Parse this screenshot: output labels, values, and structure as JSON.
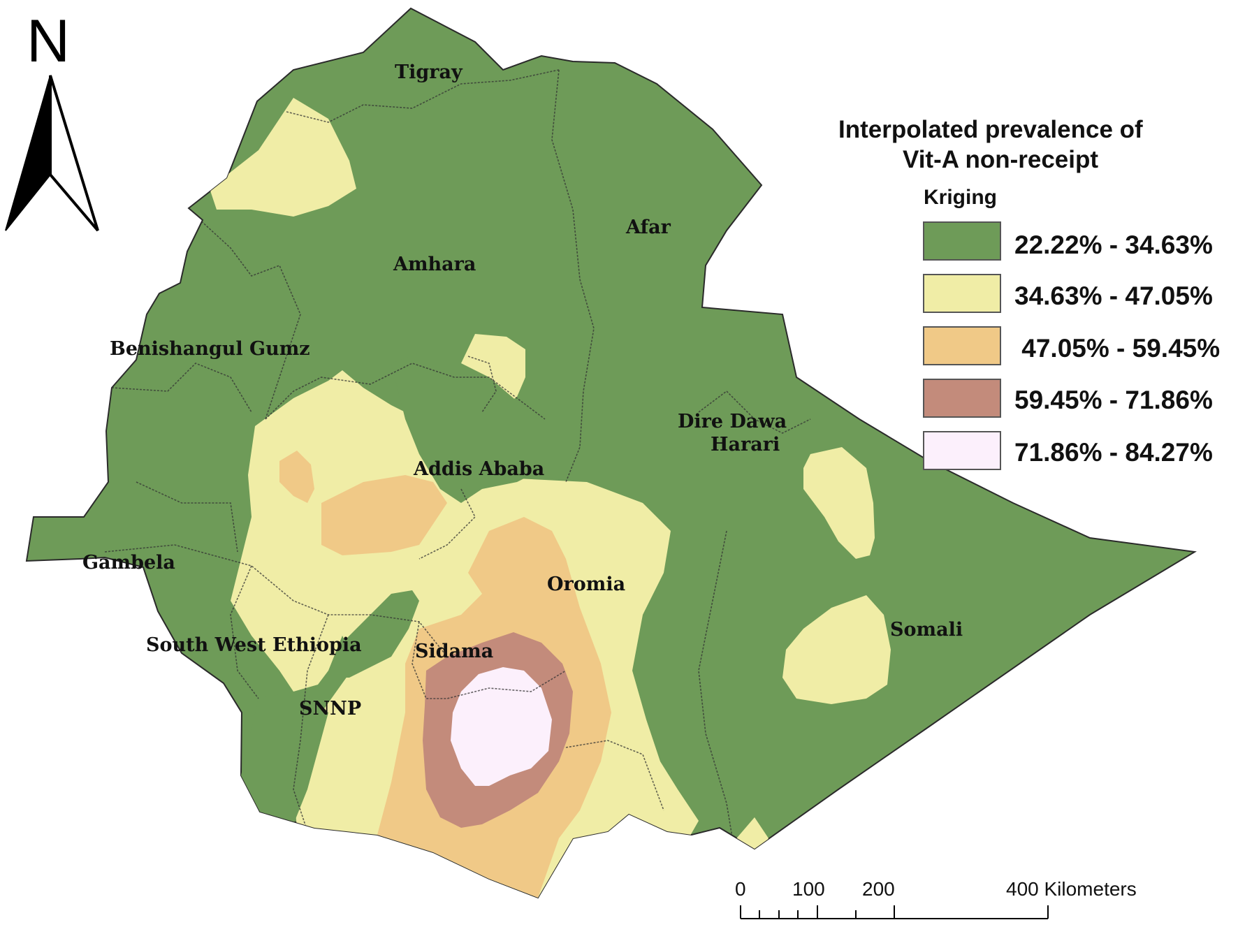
{
  "north_arrow": {
    "letter": "N"
  },
  "legend": {
    "title_line1": "Interpolated prevalence of",
    "title_line2": "Vit-A non-receipt",
    "subtitle": "Kriging",
    "classes": [
      {
        "label": "22.22% - 34.63%",
        "color": "#6e9b58"
      },
      {
        "label": "34.63% - 47.05%",
        "color": "#f0eda6"
      },
      {
        "label": " 47.05% - 59.45%",
        "color": "#f0c987"
      },
      {
        "label": "59.45% - 71.86%",
        "color": "#c38b7b"
      },
      {
        "label": "71.86% - 84.27%",
        "color": "#fcf0fc"
      }
    ]
  },
  "regions": {
    "tigray": "Tigray",
    "afar": "Afar",
    "amhara": "Amhara",
    "benishangul": "Benishangul Gumz",
    "dire_dawa": "Dire Dawa",
    "harari": "Harari",
    "addis_ababa": "Addis Ababa",
    "gambela": "Gambela",
    "oromia": "Oromia",
    "somali": "Somali",
    "south_west": "South West Ethiopia",
    "sidama": "Sidama",
    "snnp": "SNNP"
  },
  "scale_bar": {
    "ticks": [
      "0",
      "100",
      "200",
      "400 Kilometers"
    ]
  }
}
